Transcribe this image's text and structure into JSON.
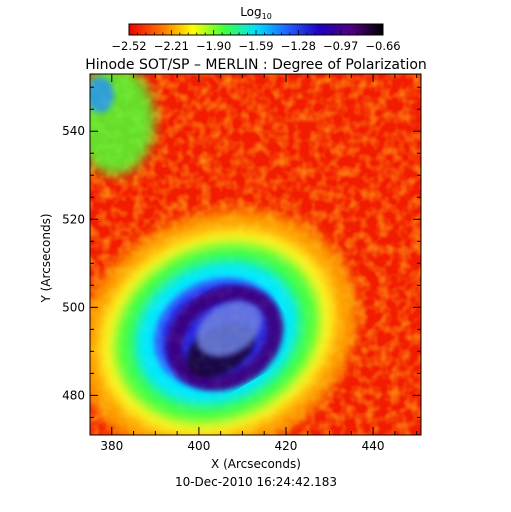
{
  "chart_data": {
    "type": "heatmap",
    "title": "Hinode SOT/SP – MERLIN : Degree of Polarization",
    "xlabel": "X (Arcseconds)",
    "ylabel": "Y (Arcseconds)",
    "xlim": [
      375,
      451
    ],
    "ylim": [
      471,
      553
    ],
    "x_ticks": [
      "380",
      "400",
      "420",
      "440"
    ],
    "y_ticks": [
      "480",
      "500",
      "520",
      "540"
    ],
    "x_tick_values": [
      380,
      400,
      420,
      440
    ],
    "y_tick_values": [
      480,
      500,
      520,
      540
    ],
    "timestamp": "10-Dec-2010 16:24:42.183",
    "colorbar": {
      "label_main": "Log",
      "label_sub": "10",
      "range": [
        -2.52,
        -0.66
      ],
      "tick_labels": [
        "−2.52",
        "−2.21",
        "−1.90",
        "−1.59",
        "−1.28",
        "−0.97",
        "−0.66"
      ],
      "tick_values": [
        -2.52,
        -2.21,
        -1.9,
        -1.59,
        -1.28,
        -0.97,
        -0.66
      ],
      "colors": [
        "#f00000",
        "#ff7000",
        "#ffff00",
        "#40ff40",
        "#00e0ff",
        "#2060ff",
        "#2000c0",
        "#500080",
        "#000000"
      ]
    },
    "features": {
      "spot_center": [
        406,
        493
      ],
      "umbra_radius": [
        9,
        7
      ],
      "penumbra_radius": [
        21,
        17
      ]
    }
  }
}
